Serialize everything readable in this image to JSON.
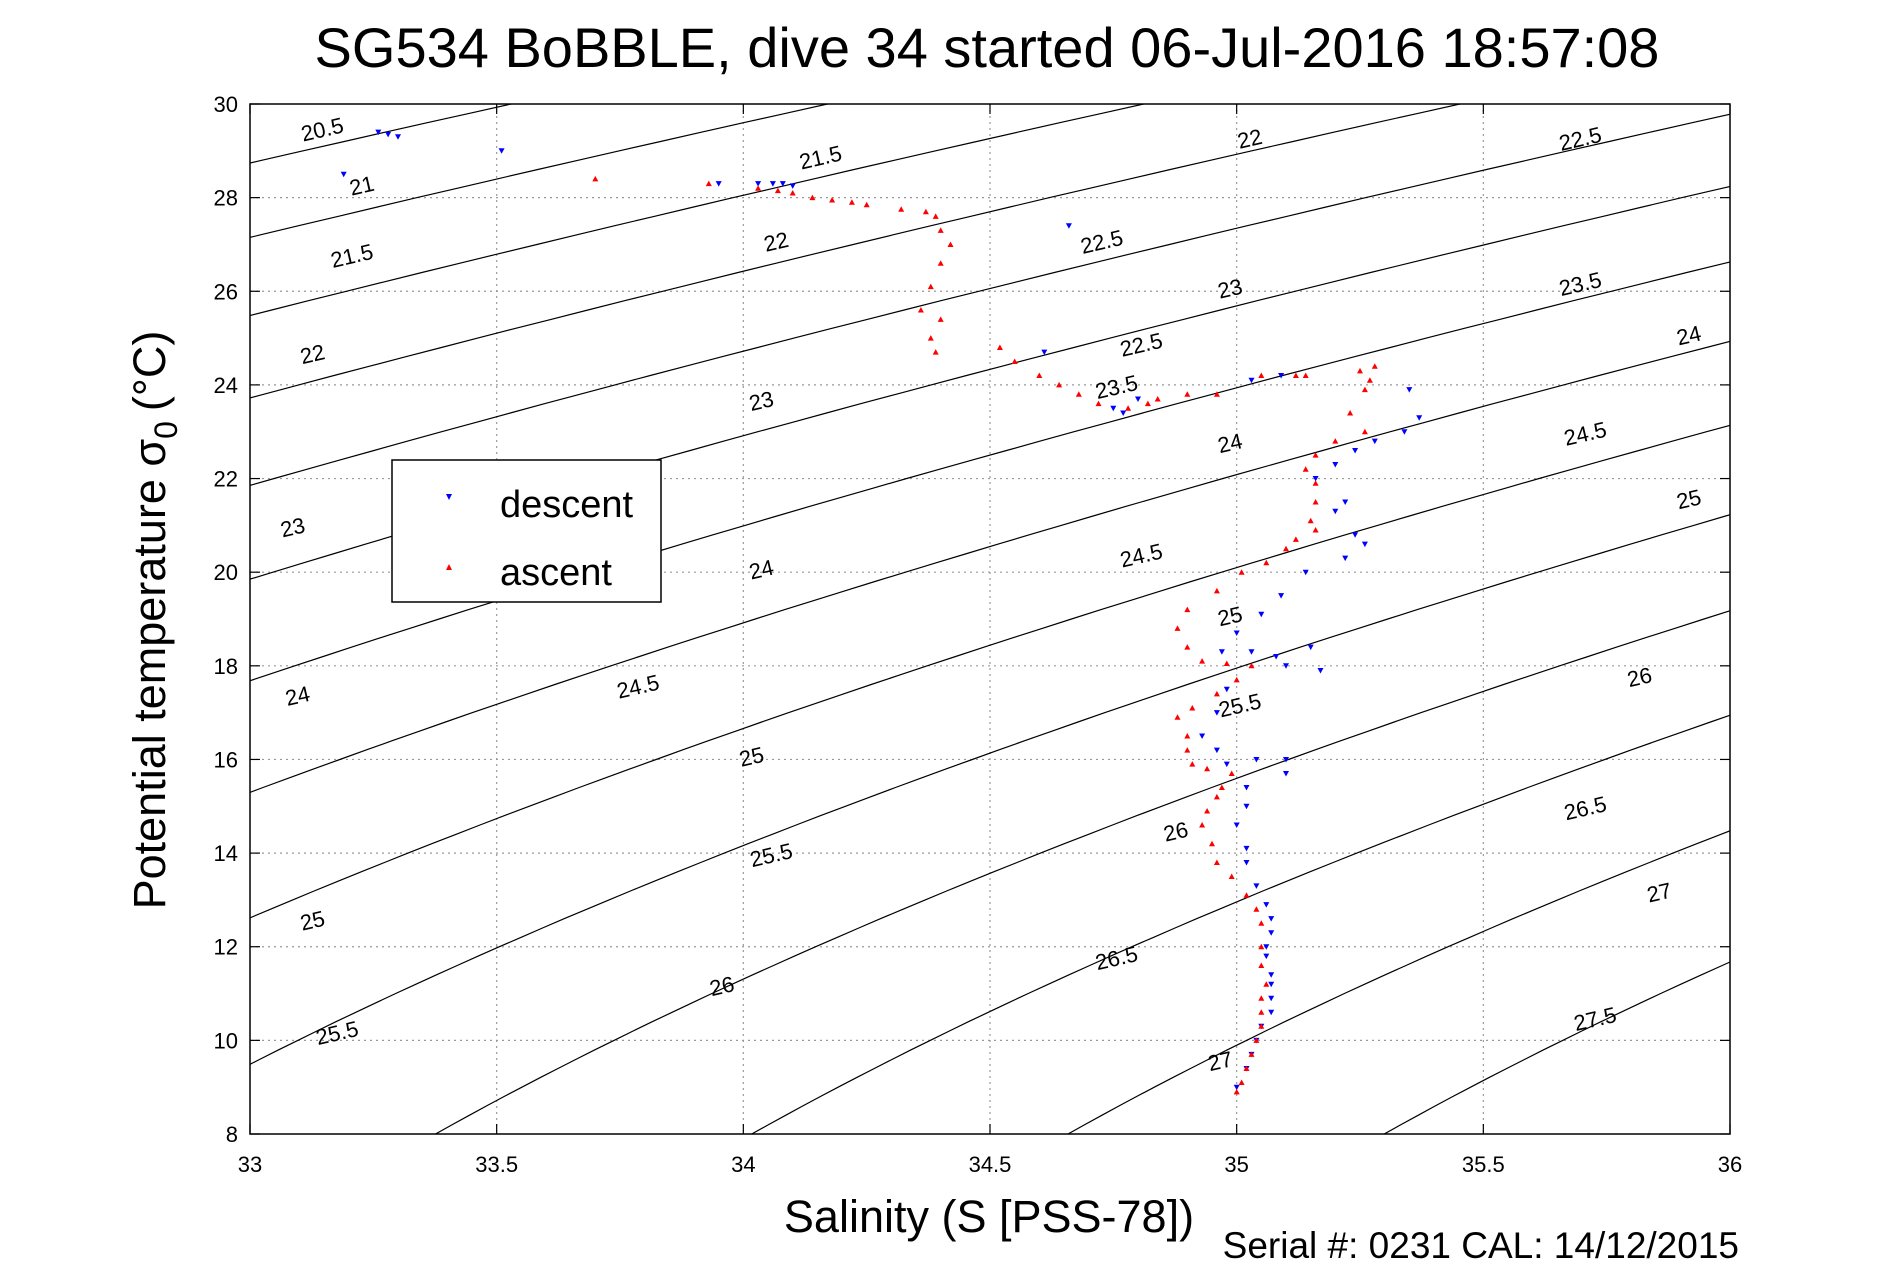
{
  "chart_data": {
    "type": "scatter",
    "title": "SG534 BoBBLE, dive 34 started 06-Jul-2016 18:57:08",
    "xlabel": "Salinity (S [PSS-78])",
    "ylabel_main": "Potential temperature σ",
    "ylabel_sub": "0",
    "ylabel_unit": "(°C)",
    "footer": "Serial #: 0231  CAL: 14/12/2015",
    "xlim": [
      33,
      36
    ],
    "ylim": [
      8,
      30
    ],
    "x_ticks": [
      "33",
      "33.5",
      "34",
      "34.5",
      "35",
      "35.5",
      "36"
    ],
    "y_ticks": [
      "8",
      "10",
      "12",
      "14",
      "16",
      "18",
      "20",
      "22",
      "24",
      "26",
      "28",
      "30"
    ],
    "grid": true,
    "legend_position": "left-center",
    "density_contours": [
      "20.5",
      "21",
      "21.5",
      "22",
      "22.5",
      "23",
      "23.5",
      "24",
      "24.5",
      "25",
      "25.5",
      "26",
      "26.5",
      "27",
      "27.5"
    ],
    "contour_labels": [
      {
        "text": "20.5",
        "x": 33.15,
        "y": 29.3
      },
      {
        "text": "21",
        "x": 33.23,
        "y": 28.1
      },
      {
        "text": "21.5",
        "x": 34.16,
        "y": 28.7
      },
      {
        "text": "21.5",
        "x": 33.21,
        "y": 26.6
      },
      {
        "text": "22",
        "x": 34.07,
        "y": 26.9
      },
      {
        "text": "22",
        "x": 33.13,
        "y": 24.5
      },
      {
        "text": "22",
        "x": 35.03,
        "y": 29.1
      },
      {
        "text": "22.5",
        "x": 34.81,
        "y": 24.7
      },
      {
        "text": "22.5",
        "x": 34.73,
        "y": 26.9
      },
      {
        "text": "22.5",
        "x": 35.7,
        "y": 29.1
      },
      {
        "text": "23",
        "x": 34.04,
        "y": 23.5
      },
      {
        "text": "23",
        "x": 33.09,
        "y": 20.8
      },
      {
        "text": "23",
        "x": 34.99,
        "y": 25.9
      },
      {
        "text": "23.5",
        "x": 34.76,
        "y": 23.8
      },
      {
        "text": "23.5",
        "x": 35.7,
        "y": 26
      },
      {
        "text": "24",
        "x": 34.99,
        "y": 22.6
      },
      {
        "text": "24",
        "x": 34.04,
        "y": 19.9
      },
      {
        "text": "24",
        "x": 33.1,
        "y": 17.2
      },
      {
        "text": "24",
        "x": 35.92,
        "y": 24.9
      },
      {
        "text": "24.5",
        "x": 34.81,
        "y": 20.2
      },
      {
        "text": "24.5",
        "x": 33.79,
        "y": 17.4
      },
      {
        "text": "24.5",
        "x": 35.71,
        "y": 22.8
      },
      {
        "text": "25",
        "x": 34.99,
        "y": 18.9
      },
      {
        "text": "25",
        "x": 34.02,
        "y": 15.9
      },
      {
        "text": "25",
        "x": 33.13,
        "y": 12.4
      },
      {
        "text": "25",
        "x": 35.92,
        "y": 21.4
      },
      {
        "text": "25.5",
        "x": 35.01,
        "y": 17.0
      },
      {
        "text": "25.5",
        "x": 34.06,
        "y": 13.8
      },
      {
        "text": "25.5",
        "x": 33.18,
        "y": 10.0
      },
      {
        "text": "26",
        "x": 34.88,
        "y": 14.3
      },
      {
        "text": "26",
        "x": 33.96,
        "y": 11.0
      },
      {
        "text": "26",
        "x": 35.82,
        "y": 17.6
      },
      {
        "text": "26.5",
        "x": 34.76,
        "y": 11.6
      },
      {
        "text": "26.5",
        "x": 35.71,
        "y": 14.8
      },
      {
        "text": "27",
        "x": 34.97,
        "y": 9.4
      },
      {
        "text": "27",
        "x": 35.86,
        "y": 13.0
      },
      {
        "text": "27.5",
        "x": 35.73,
        "y": 10.3
      }
    ],
    "series": [
      {
        "name": "descent",
        "color": "#0000ff",
        "marker": "triangle-down",
        "points": [
          [
            33.26,
            29.4
          ],
          [
            33.28,
            29.35
          ],
          [
            33.3,
            29.3
          ],
          [
            33.19,
            28.5
          ],
          [
            33.51,
            29.0
          ],
          [
            34.03,
            28.3
          ],
          [
            34.06,
            28.3
          ],
          [
            34.08,
            28.3
          ],
          [
            34.1,
            28.25
          ],
          [
            33.95,
            28.3
          ],
          [
            34.66,
            27.4
          ],
          [
            34.61,
            24.7
          ],
          [
            34.75,
            23.5
          ],
          [
            34.77,
            23.4
          ],
          [
            34.8,
            23.7
          ],
          [
            35.03,
            24.1
          ],
          [
            35.09,
            24.2
          ],
          [
            35.35,
            23.9
          ],
          [
            35.37,
            23.3
          ],
          [
            35.34,
            23.0
          ],
          [
            35.28,
            22.8
          ],
          [
            35.24,
            22.6
          ],
          [
            35.2,
            22.3
          ],
          [
            35.16,
            22.0
          ],
          [
            35.22,
            21.5
          ],
          [
            35.2,
            21.3
          ],
          [
            35.24,
            20.8
          ],
          [
            35.26,
            20.6
          ],
          [
            35.22,
            20.3
          ],
          [
            35.14,
            20.0
          ],
          [
            35.09,
            19.5
          ],
          [
            35.05,
            19.1
          ],
          [
            35.0,
            18.7
          ],
          [
            34.97,
            18.3
          ],
          [
            35.03,
            18.3
          ],
          [
            35.08,
            18.2
          ],
          [
            35.1,
            18.0
          ],
          [
            35.15,
            18.4
          ],
          [
            35.17,
            17.9
          ],
          [
            34.98,
            17.5
          ],
          [
            34.96,
            17.0
          ],
          [
            34.93,
            16.5
          ],
          [
            34.96,
            16.2
          ],
          [
            34.98,
            15.9
          ],
          [
            35.04,
            16.0
          ],
          [
            35.1,
            16.0
          ],
          [
            35.1,
            15.7
          ],
          [
            35.02,
            15.4
          ],
          [
            35.02,
            15.0
          ],
          [
            35.0,
            14.6
          ],
          [
            35.02,
            14.1
          ],
          [
            35.02,
            13.8
          ],
          [
            35.04,
            13.3
          ],
          [
            35.06,
            12.9
          ],
          [
            35.07,
            12.6
          ],
          [
            35.07,
            12.3
          ],
          [
            35.06,
            12.0
          ],
          [
            35.06,
            11.8
          ],
          [
            35.07,
            11.4
          ],
          [
            35.07,
            11.2
          ],
          [
            35.07,
            10.9
          ],
          [
            35.07,
            10.6
          ],
          [
            35.05,
            10.3
          ],
          [
            35.04,
            10.0
          ],
          [
            35.03,
            9.7
          ],
          [
            35.02,
            9.4
          ],
          [
            35.0,
            9.0
          ]
        ]
      },
      {
        "name": "ascent",
        "color": "#ff0000",
        "marker": "triangle-up",
        "points": [
          [
            33.7,
            28.4
          ],
          [
            33.93,
            28.3
          ],
          [
            34.03,
            28.2
          ],
          [
            34.07,
            28.15
          ],
          [
            34.1,
            28.1
          ],
          [
            34.14,
            28.0
          ],
          [
            34.18,
            27.95
          ],
          [
            34.22,
            27.9
          ],
          [
            34.25,
            27.85
          ],
          [
            34.32,
            27.75
          ],
          [
            34.37,
            27.7
          ],
          [
            34.39,
            27.6
          ],
          [
            34.4,
            27.3
          ],
          [
            34.42,
            27.0
          ],
          [
            34.4,
            26.6
          ],
          [
            34.38,
            26.1
          ],
          [
            34.36,
            25.6
          ],
          [
            34.4,
            25.4
          ],
          [
            34.38,
            25.0
          ],
          [
            34.39,
            24.7
          ],
          [
            34.52,
            24.8
          ],
          [
            34.55,
            24.5
          ],
          [
            34.6,
            24.2
          ],
          [
            34.64,
            24.0
          ],
          [
            34.68,
            23.8
          ],
          [
            34.72,
            23.6
          ],
          [
            34.78,
            23.5
          ],
          [
            34.82,
            23.6
          ],
          [
            34.84,
            23.7
          ],
          [
            34.9,
            23.8
          ],
          [
            34.96,
            23.8
          ],
          [
            35.05,
            24.2
          ],
          [
            35.12,
            24.2
          ],
          [
            35.14,
            24.2
          ],
          [
            35.25,
            24.3
          ],
          [
            35.28,
            24.4
          ],
          [
            35.27,
            24.1
          ],
          [
            35.26,
            23.9
          ],
          [
            35.23,
            23.4
          ],
          [
            35.26,
            23.0
          ],
          [
            35.2,
            22.8
          ],
          [
            35.16,
            22.5
          ],
          [
            35.14,
            22.2
          ],
          [
            35.16,
            21.9
          ],
          [
            35.16,
            21.5
          ],
          [
            35.15,
            21.1
          ],
          [
            35.16,
            20.9
          ],
          [
            35.12,
            20.7
          ],
          [
            35.1,
            20.5
          ],
          [
            35.06,
            20.2
          ],
          [
            35.01,
            20.0
          ],
          [
            34.96,
            19.6
          ],
          [
            34.9,
            19.2
          ],
          [
            34.88,
            18.8
          ],
          [
            34.9,
            18.4
          ],
          [
            34.93,
            18.1
          ],
          [
            34.98,
            18.05
          ],
          [
            35.03,
            18.0
          ],
          [
            35.0,
            17.7
          ],
          [
            34.96,
            17.4
          ],
          [
            34.91,
            17.1
          ],
          [
            34.88,
            16.9
          ],
          [
            34.9,
            16.5
          ],
          [
            34.9,
            16.2
          ],
          [
            34.91,
            15.9
          ],
          [
            34.94,
            15.8
          ],
          [
            34.99,
            15.7
          ],
          [
            34.97,
            15.4
          ],
          [
            34.96,
            15.2
          ],
          [
            34.94,
            14.9
          ],
          [
            34.93,
            14.6
          ],
          [
            34.95,
            14.2
          ],
          [
            34.96,
            13.8
          ],
          [
            34.99,
            13.5
          ],
          [
            35.02,
            13.1
          ],
          [
            35.04,
            12.8
          ],
          [
            35.05,
            12.5
          ],
          [
            35.05,
            12.0
          ],
          [
            35.05,
            11.6
          ],
          [
            35.06,
            11.2
          ],
          [
            35.05,
            10.9
          ],
          [
            35.05,
            10.6
          ],
          [
            35.05,
            10.3
          ],
          [
            35.04,
            10.0
          ],
          [
            35.03,
            9.7
          ],
          [
            35.02,
            9.4
          ],
          [
            35.01,
            9.1
          ],
          [
            35.0,
            8.9
          ]
        ]
      }
    ]
  }
}
